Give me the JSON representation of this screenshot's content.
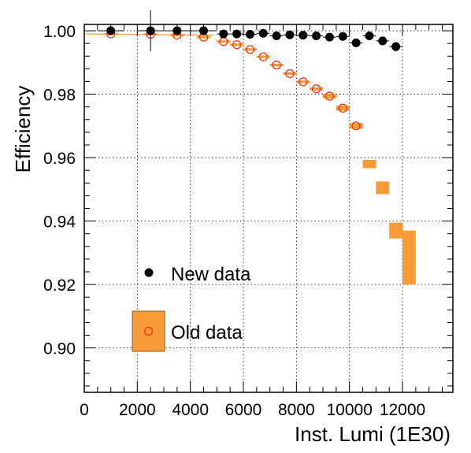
{
  "chart_data": {
    "type": "scatter",
    "title": "",
    "xlabel": "Inst. Lumi (1E30)",
    "ylabel": "Efficiency",
    "xlim": [
      0,
      13900
    ],
    "ylim": [
      0.886,
      1.002
    ],
    "x_ticks": [
      0,
      2000,
      4000,
      6000,
      8000,
      10000,
      12000
    ],
    "x_tick_labels": [
      "0",
      "2000",
      "4000",
      "6000",
      "8000",
      "10000",
      "12000"
    ],
    "y_ticks": [
      0.9,
      0.92,
      0.94,
      0.96,
      0.98,
      1.0
    ],
    "y_tick_labels": [
      "0.90",
      "0.92",
      "0.94",
      "0.96",
      "0.98",
      "1.00"
    ],
    "grid": true,
    "legend": {
      "position": "bottom-left",
      "entries": [
        {
          "label": "New data",
          "marker": "filled-circle"
        },
        {
          "label": "Old data",
          "marker": "open-circle-with-box"
        }
      ]
    },
    "colors": {
      "new": "#000000",
      "old_marker": "#ff2a00",
      "old_box": "#f89a38",
      "old_box_edge": "#8a5a20",
      "grid": "#000000"
    },
    "series": [
      {
        "name": "New data",
        "points": [
          {
            "x": 1000,
            "y": 1.0,
            "yerr": 0.001
          },
          {
            "x": 2500,
            "y": 1.0,
            "yerr": 0.0065
          },
          {
            "x": 3500,
            "y": 1.0,
            "yerr": 0.0012
          },
          {
            "x": 4500,
            "y": 1.0,
            "yerr": 0.0007
          },
          {
            "x": 5250,
            "y": 0.999,
            "yerr": 0.0004
          },
          {
            "x": 5750,
            "y": 0.999,
            "yerr": 0.0004
          },
          {
            "x": 6250,
            "y": 0.9989,
            "yerr": 0.0004
          },
          {
            "x": 6750,
            "y": 0.9992,
            "yerr": 0.0004
          },
          {
            "x": 7250,
            "y": 0.9984,
            "yerr": 0.0004
          },
          {
            "x": 7750,
            "y": 0.9987,
            "yerr": 0.0004
          },
          {
            "x": 8250,
            "y": 0.9986,
            "yerr": 0.0004
          },
          {
            "x": 8750,
            "y": 0.9984,
            "yerr": 0.0004
          },
          {
            "x": 9250,
            "y": 0.998,
            "yerr": 0.0004
          },
          {
            "x": 9750,
            "y": 0.9982,
            "yerr": 0.0005
          },
          {
            "x": 10250,
            "y": 0.9962,
            "yerr": 0.0005
          },
          {
            "x": 10750,
            "y": 0.9984,
            "yerr": 0.0006
          },
          {
            "x": 11250,
            "y": 0.9968,
            "yerr": 0.0007
          },
          {
            "x": 11750,
            "y": 0.995,
            "yerr": 0.0015
          }
        ]
      },
      {
        "name": "Old data",
        "points": [
          {
            "x": 1000,
            "y": 0.999,
            "yerr": 0.0003
          },
          {
            "x": 2500,
            "y": 0.9989,
            "yerr": 0.0003
          },
          {
            "x": 3500,
            "y": 0.9986,
            "yerr": 0.0004
          },
          {
            "x": 4500,
            "y": 0.998,
            "yerr": 0.0004
          },
          {
            "x": 5250,
            "y": 0.9966,
            "yerr": 0.0004
          },
          {
            "x": 5750,
            "y": 0.9956,
            "yerr": 0.0004
          },
          {
            "x": 6250,
            "y": 0.9941,
            "yerr": 0.0004
          },
          {
            "x": 6750,
            "y": 0.9918,
            "yerr": 0.0004
          },
          {
            "x": 7250,
            "y": 0.9892,
            "yerr": 0.0004
          },
          {
            "x": 7750,
            "y": 0.9865,
            "yerr": 0.0004
          },
          {
            "x": 8250,
            "y": 0.9839,
            "yerr": 0.0004
          },
          {
            "x": 8750,
            "y": 0.9817,
            "yerr": 0.0005
          },
          {
            "x": 9250,
            "y": 0.9794,
            "yerr": 0.0007
          },
          {
            "x": 9750,
            "y": 0.9756,
            "yerr": 0.0008
          },
          {
            "x": 10250,
            "y": 0.97,
            "yerr": 0.0009
          },
          {
            "x": 10750,
            "y": 0.958,
            "yerr": 0.0013
          },
          {
            "x": 11250,
            "y": 0.9505,
            "yerr": 0.002
          },
          {
            "x": 11750,
            "y": 0.937,
            "yerr": 0.0025
          },
          {
            "x": 12250,
            "y": 0.9285,
            "yerr": 0.0085
          }
        ]
      }
    ]
  }
}
